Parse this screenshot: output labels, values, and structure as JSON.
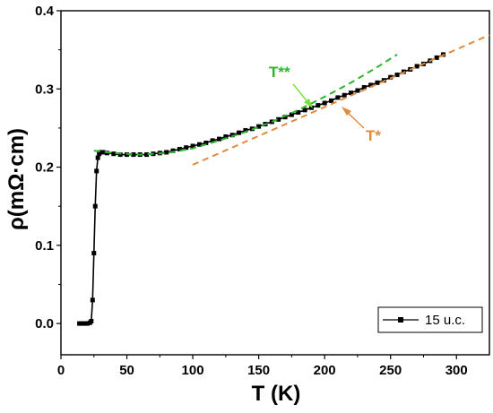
{
  "chart_data": {
    "type": "line",
    "xlabel": "T (K)",
    "ylabel": "ρ(mΩ·cm)",
    "xlim": [
      0,
      325
    ],
    "ylim": [
      -0.04,
      0.4
    ],
    "xticks": [
      "0",
      "50",
      "100",
      "150",
      "200",
      "250",
      "300"
    ],
    "yticks": [
      "0.0",
      "0.1",
      "0.2",
      "0.3",
      "0.4"
    ],
    "legend": {
      "position": "bottom-right",
      "label": "15 u.c."
    },
    "series": [
      {
        "name": "15 u.c.",
        "color": "#000000",
        "marker": "square",
        "x": [
          14,
          16,
          18,
          20,
          22,
          23,
          24,
          25,
          26,
          27,
          28,
          29,
          30,
          32,
          35,
          40,
          45,
          50,
          55,
          60,
          65,
          70,
          75,
          80,
          85,
          90,
          95,
          100,
          105,
          110,
          115,
          120,
          125,
          130,
          135,
          140,
          145,
          150,
          155,
          160,
          165,
          170,
          175,
          180,
          185,
          190,
          195,
          200,
          205,
          210,
          215,
          220,
          225,
          230,
          235,
          240,
          245,
          250,
          255,
          260,
          265,
          270,
          275,
          280,
          285,
          290
        ],
        "y": [
          0.0,
          0.0,
          0.0,
          0.0,
          0.001,
          0.003,
          0.03,
          0.09,
          0.15,
          0.195,
          0.212,
          0.217,
          0.219,
          0.219,
          0.218,
          0.217,
          0.216,
          0.216,
          0.216,
          0.216,
          0.216,
          0.217,
          0.218,
          0.219,
          0.221,
          0.223,
          0.225,
          0.227,
          0.229,
          0.231,
          0.234,
          0.236,
          0.239,
          0.241,
          0.244,
          0.247,
          0.249,
          0.252,
          0.255,
          0.258,
          0.261,
          0.264,
          0.267,
          0.27,
          0.273,
          0.276,
          0.279,
          0.282,
          0.285,
          0.289,
          0.292,
          0.295,
          0.298,
          0.302,
          0.305,
          0.308,
          0.311,
          0.315,
          0.318,
          0.322,
          0.325,
          0.329,
          0.332,
          0.336,
          0.34,
          0.344
        ]
      }
    ],
    "fits": [
      {
        "name": "linear-fit",
        "color": "#e08a3c",
        "style": "dashed",
        "x": [
          100,
          325
        ],
        "y": [
          0.203,
          0.369
        ]
      },
      {
        "name": "quadratic-fit",
        "color": "#2db52d",
        "style": "dashed",
        "x": [
          25,
          40,
          60,
          80,
          100,
          120,
          140,
          160,
          180,
          200,
          220,
          240,
          255
        ],
        "y": [
          0.221,
          0.218,
          0.216,
          0.218,
          0.224,
          0.234,
          0.245,
          0.258,
          0.273,
          0.29,
          0.308,
          0.328,
          0.344
        ]
      }
    ],
    "annotations": [
      {
        "text": "T**",
        "color": "#2db52d",
        "arrow_to": [
          190,
          0.272
        ]
      },
      {
        "text": "T*",
        "color": "#e08a3c",
        "arrow_to": [
          205,
          0.28
        ]
      }
    ]
  }
}
